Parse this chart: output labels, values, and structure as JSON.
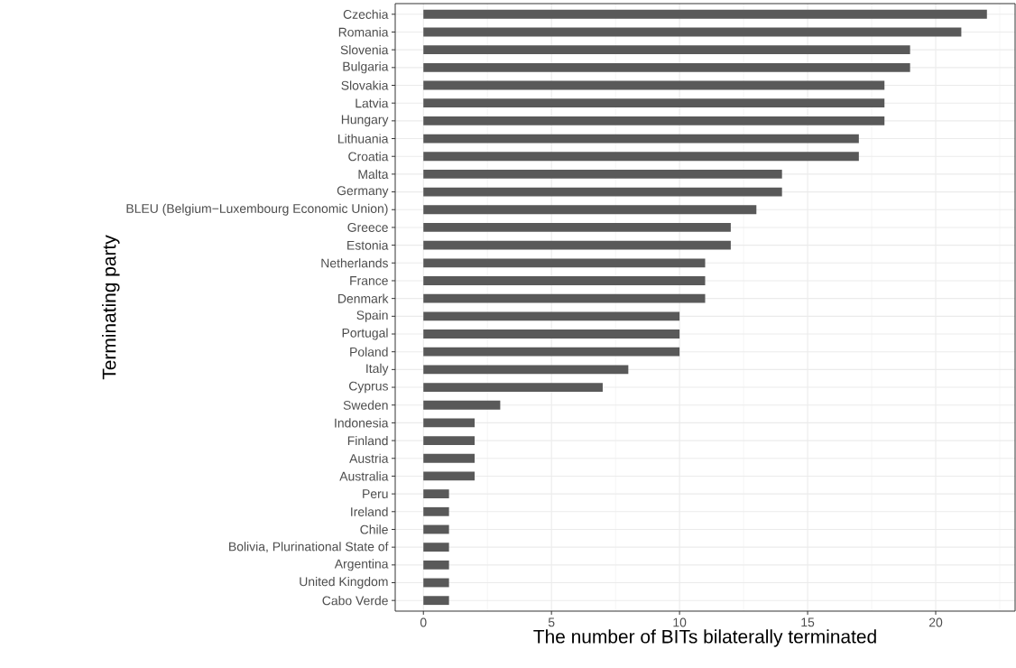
{
  "chart_data": {
    "type": "bar",
    "orientation": "horizontal",
    "xlabel": "The number of BITs bilaterally terminated",
    "ylabel": "Terminating party",
    "categories": [
      "Czechia",
      "Romania",
      "Slovenia",
      "Bulgaria",
      "Slovakia",
      "Latvia",
      "Hungary",
      "Lithuania",
      "Croatia",
      "Malta",
      "Germany",
      "BLEU (Belgium−Luxembourg Economic Union)",
      "Greece",
      "Estonia",
      "Netherlands",
      "France",
      "Denmark",
      "Spain",
      "Portugal",
      "Poland",
      "Italy",
      "Cyprus",
      "Sweden",
      "Indonesia",
      "Finland",
      "Austria",
      "Australia",
      "Peru",
      "Ireland",
      "Chile",
      "Bolivia,  Plurinational State of",
      "Argentina",
      "United Kingdom",
      "Cabo Verde"
    ],
    "values": [
      22,
      21,
      19,
      19,
      18,
      18,
      18,
      17,
      17,
      14,
      14,
      13,
      12,
      12,
      11,
      11,
      11,
      10,
      10,
      10,
      8,
      7,
      3,
      2,
      2,
      2,
      2,
      1,
      1,
      1,
      1,
      1,
      1,
      1
    ],
    "color": "#595959",
    "xlim": [
      -1.1,
      23.1
    ],
    "xticks": [
      0,
      5,
      10,
      15,
      20
    ],
    "grid": true
  }
}
